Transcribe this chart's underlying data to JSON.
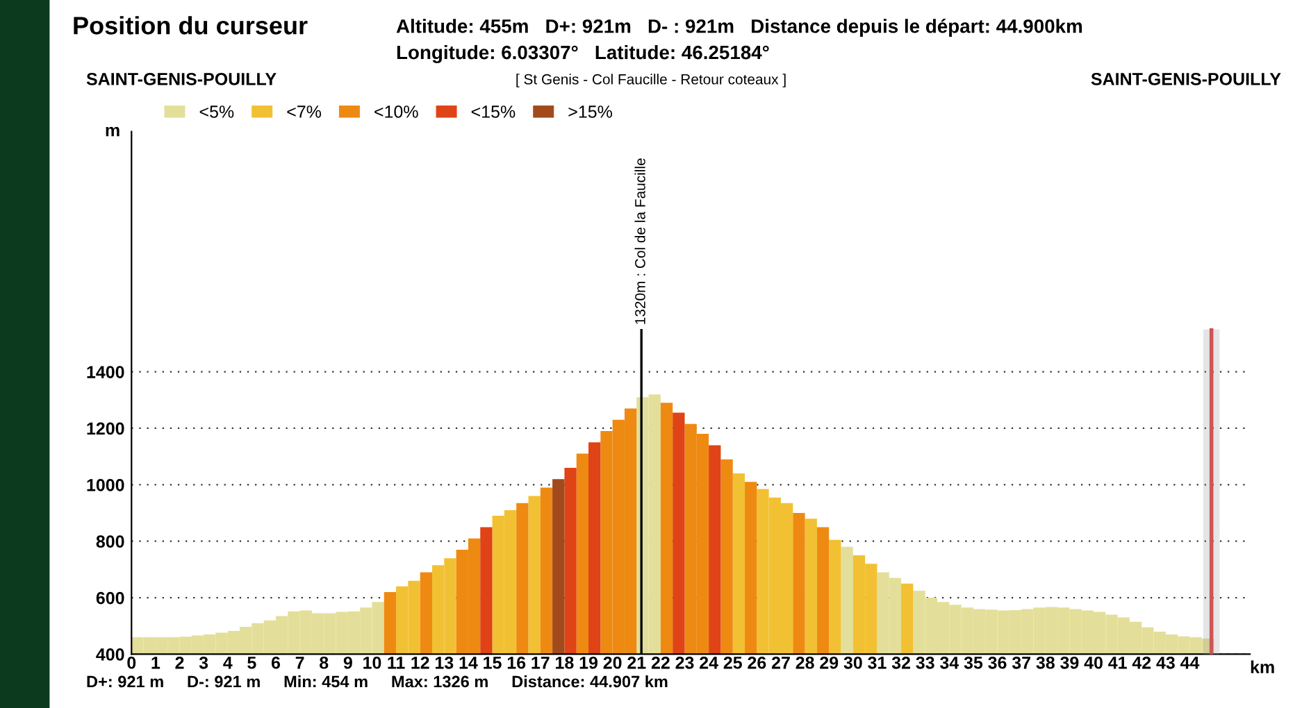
{
  "chart_data": {
    "type": "bar",
    "title": "Position du curseur",
    "subtitle": "[ St Genis - Col Faucille - Retour coteaux ]",
    "xlabel": "km",
    "ylabel": "m",
    "annotations": [
      "Altitude: 455m   D+: 921m   D- : 921m   Distance depuis le départ: 44.900km",
      "Longitude: 6.03307°   Latitude: 46.25184°",
      "SAINT-GENIS-POUILLY",
      "SAINT-GENIS-POUILLY",
      "D+: 921 m     D-: 921 m     Min: 454 m     Max: 1326 m     Distance: 44.907 km"
    ],
    "x": [
      0,
      0.5,
      1,
      1.5,
      2,
      2.5,
      3,
      3.5,
      4,
      4.5,
      5,
      5.5,
      6,
      6.5,
      7,
      7.5,
      8,
      8.5,
      9,
      9.5,
      10,
      10.5,
      11,
      11.5,
      12,
      12.5,
      13,
      13.5,
      14,
      14.5,
      15,
      15.5,
      16,
      16.5,
      17,
      17.5,
      18,
      18.5,
      19,
      19.5,
      20,
      20.5,
      21,
      21.5,
      22,
      22.5,
      23,
      23.5,
      24,
      24.5,
      25,
      25.5,
      26,
      26.5,
      27,
      27.5,
      28,
      28.5,
      29,
      29.5,
      30,
      30.5,
      31,
      31.5,
      32,
      32.5,
      33,
      33.5,
      34,
      34.5,
      35,
      35.5,
      36,
      36.5,
      37,
      37.5,
      38,
      38.5,
      39,
      39.5,
      40,
      40.5,
      41,
      41.5,
      42,
      42.5,
      43,
      43.5,
      44,
      44.5
    ],
    "series": [
      {
        "name": "<5%",
        "color": "#e3df9a",
        "values": [
          460,
          460,
          460,
          460,
          462,
          466,
          470,
          476,
          482,
          497,
          510,
          520,
          535,
          552,
          555,
          545,
          545,
          550,
          552,
          565,
          585,
          null,
          null,
          null,
          null,
          null,
          null,
          null,
          null,
          null,
          null,
          null,
          null,
          null,
          null,
          null,
          null,
          null,
          null,
          null,
          null,
          null,
          1310,
          1320,
          null,
          null,
          null,
          null,
          null,
          null,
          null,
          null,
          null,
          null,
          null,
          null,
          null,
          null,
          null,
          780,
          null,
          null,
          690,
          670,
          null,
          625,
          600,
          585,
          575,
          565,
          560,
          558,
          555,
          556,
          560,
          565,
          567,
          565,
          560,
          555,
          550,
          540,
          530,
          515,
          495,
          480,
          470,
          463,
          460,
          455
        ]
      },
      {
        "name": "<7%",
        "color": "#f2c133",
        "values": [
          null,
          null,
          null,
          null,
          null,
          null,
          null,
          null,
          null,
          null,
          null,
          null,
          null,
          null,
          null,
          null,
          null,
          null,
          null,
          null,
          null,
          null,
          640,
          660,
          null,
          715,
          740,
          null,
          null,
          null,
          890,
          910,
          null,
          960,
          null,
          null,
          null,
          null,
          null,
          null,
          null,
          null,
          null,
          null,
          null,
          null,
          null,
          null,
          null,
          null,
          1040,
          null,
          985,
          955,
          935,
          null,
          880,
          null,
          805,
          null,
          750,
          720,
          null,
          null,
          650,
          null,
          null,
          null,
          null,
          null,
          null,
          null,
          null,
          null,
          null,
          null,
          null,
          null,
          null,
          null,
          null,
          null,
          null,
          null,
          null,
          null,
          null,
          null,
          null,
          null
        ]
      },
      {
        "name": "<10%",
        "color": "#ee8a12",
        "values": [
          null,
          null,
          null,
          null,
          null,
          null,
          null,
          null,
          null,
          null,
          null,
          null,
          null,
          null,
          null,
          null,
          null,
          null,
          null,
          null,
          null,
          620,
          null,
          null,
          690,
          null,
          null,
          770,
          810,
          null,
          null,
          null,
          935,
          null,
          990,
          null,
          null,
          1110,
          null,
          1190,
          1230,
          1270,
          null,
          null,
          1290,
          null,
          1215,
          1180,
          null,
          1090,
          null,
          1010,
          null,
          null,
          null,
          900,
          null,
          850,
          null,
          null,
          null,
          null,
          null,
          null,
          null,
          null,
          null,
          null,
          null,
          null,
          null,
          null,
          null,
          null,
          null,
          null,
          null,
          null,
          null,
          null,
          null,
          null,
          null,
          null,
          null,
          null,
          null,
          null,
          null,
          null
        ]
      },
      {
        "name": "<15%",
        "color": "#df4316",
        "values": [
          null,
          null,
          null,
          null,
          null,
          null,
          null,
          null,
          null,
          null,
          null,
          null,
          null,
          null,
          null,
          null,
          null,
          null,
          null,
          null,
          null,
          null,
          null,
          null,
          null,
          null,
          null,
          null,
          null,
          850,
          null,
          null,
          null,
          null,
          null,
          null,
          1060,
          null,
          1150,
          null,
          null,
          null,
          null,
          null,
          null,
          1255,
          null,
          null,
          1140,
          null,
          null,
          null,
          null,
          null,
          null,
          null,
          null,
          null,
          null,
          null,
          null,
          null,
          null,
          null,
          null,
          null,
          null,
          null,
          null,
          null,
          null,
          null,
          null,
          null,
          null,
          null,
          null,
          null,
          null,
          null,
          null,
          null,
          null,
          null,
          null,
          null,
          null,
          null,
          null,
          null
        ]
      },
      {
        "name": ">15%",
        "color": "#a24a1c",
        "values": [
          null,
          null,
          null,
          null,
          null,
          null,
          null,
          null,
          null,
          null,
          null,
          null,
          null,
          null,
          null,
          null,
          null,
          null,
          null,
          null,
          null,
          null,
          null,
          null,
          null,
          null,
          null,
          null,
          null,
          null,
          null,
          null,
          null,
          null,
          null,
          1020,
          null,
          null,
          null,
          null,
          null,
          null,
          null,
          null,
          null,
          null,
          null,
          null,
          null,
          null,
          null,
          null,
          null,
          null,
          null,
          null,
          null,
          null,
          null,
          null,
          null,
          null,
          null,
          null,
          null,
          null,
          null,
          null,
          null,
          null,
          null,
          null,
          null,
          null,
          null,
          null,
          null,
          null,
          null,
          null,
          null,
          null,
          null,
          null,
          null,
          null,
          null,
          null,
          null,
          null
        ]
      }
    ],
    "xlim": [
      0,
      46.5
    ],
    "ylim": [
      400,
      2250
    ],
    "xticks": [
      0,
      1,
      2,
      3,
      4,
      5,
      6,
      7,
      8,
      9,
      10,
      11,
      12,
      13,
      14,
      15,
      16,
      17,
      18,
      19,
      20,
      21,
      22,
      23,
      24,
      25,
      26,
      27,
      28,
      29,
      30,
      31,
      32,
      33,
      34,
      35,
      36,
      37,
      38,
      39,
      40,
      41,
      42,
      43,
      44
    ],
    "yticks": [
      400,
      600,
      800,
      1000,
      1200,
      1400
    ],
    "grid": "y",
    "legend": "top left",
    "ref_lines": [
      {
        "axis": "x",
        "value": 21.2,
        "label": "1320m : Col de la Faucille",
        "color": "#000000"
      },
      {
        "axis": "x",
        "value": 44.9,
        "color": "#e04040"
      }
    ],
    "bands": [
      {
        "axis": "x",
        "from": 44.6,
        "to": 45.2,
        "color": "#999999"
      }
    ]
  }
}
